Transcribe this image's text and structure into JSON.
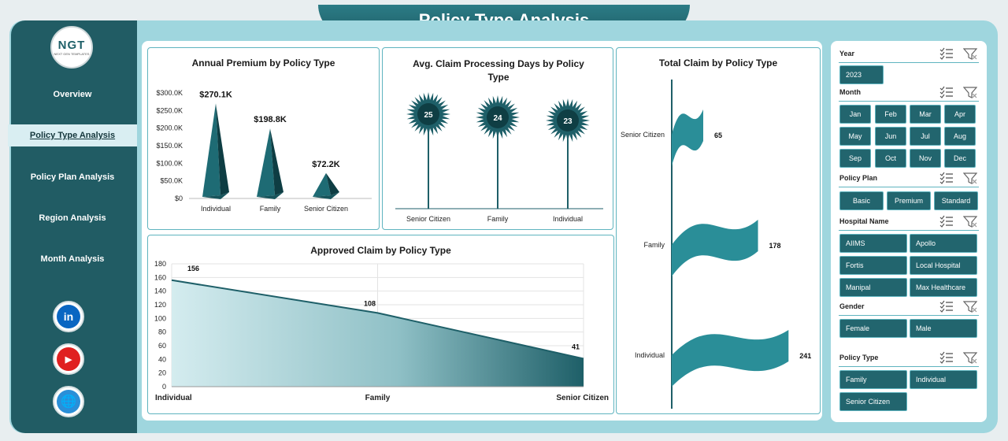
{
  "title": "Policy Type Analysis",
  "logo": {
    "text": "NGT",
    "subtext": "NEXT GEN TEMPLATES"
  },
  "nav": [
    {
      "label": "Overview",
      "active": false
    },
    {
      "label": "Policy Type Analysis",
      "active": true
    },
    {
      "label": "Policy Plan Analysis",
      "active": false
    },
    {
      "label": "Region Analysis",
      "active": false
    },
    {
      "label": "Month Analysis",
      "active": false
    }
  ],
  "social": [
    {
      "icon": "linkedin-icon",
      "glyph": "in",
      "color": "#0a66c2"
    },
    {
      "icon": "youtube-icon",
      "glyph": "▶",
      "color": "#e02020"
    },
    {
      "icon": "globe-icon",
      "glyph": "🌐",
      "color": "#2a8fd8"
    }
  ],
  "chart_data": [
    {
      "type": "bar",
      "title": "Annual Premium by Policy Type",
      "categories": [
        "Individual",
        "Family",
        "Senior Citizen"
      ],
      "values": [
        270.1,
        198.8,
        72.2
      ],
      "data_labels": [
        "$270.1K",
        "$198.8K",
        "$72.2K"
      ],
      "yticks": [
        "$0",
        "$50.0K",
        "$100.0K",
        "$150.0K",
        "$200.0K",
        "$250.0K",
        "$300.0K"
      ],
      "ylim": [
        0,
        300
      ],
      "unit": "K",
      "color": "#1e6b74"
    },
    {
      "type": "bar",
      "title": "Avg. Claim Processing Days by Policy Type",
      "categories": [
        "Senior Citizen",
        "Family",
        "Individual"
      ],
      "values": [
        25,
        24,
        23
      ],
      "data_labels": [
        "25",
        "24",
        "23"
      ],
      "color": "#1e5f68"
    },
    {
      "type": "bar",
      "title": "Total Claim by Policy Type",
      "categories": [
        "Senior Citizen",
        "Family",
        "Individual"
      ],
      "values": [
        65,
        178,
        241
      ],
      "data_labels": [
        "65",
        "178",
        "241"
      ],
      "orientation": "horizontal",
      "color": "#2a8e98"
    },
    {
      "type": "area",
      "title": "Approved Claim by Policy Type",
      "categories": [
        "Individual",
        "Family",
        "Senior Citizen"
      ],
      "values": [
        156,
        108,
        41
      ],
      "data_labels": [
        "156",
        "108",
        "41"
      ],
      "yticks": [
        "0",
        "20",
        "40",
        "60",
        "80",
        "100",
        "120",
        "140",
        "160",
        "180"
      ],
      "ylim": [
        0,
        180
      ],
      "grid": true,
      "color": "#1e5f68"
    }
  ],
  "slicers": [
    {
      "label": "Year",
      "items": [
        "2023"
      ]
    },
    {
      "label": "Month",
      "items": [
        "Jan",
        "Feb",
        "Mar",
        "Apr",
        "May",
        "Jun",
        "Jul",
        "Aug",
        "Sep",
        "Oct",
        "Nov",
        "Dec"
      ]
    },
    {
      "label": "Policy Plan",
      "items": [
        "Basic",
        "Premium",
        "Standard"
      ]
    },
    {
      "label": "Hospital Name",
      "items": [
        "AIIMS",
        "Apollo",
        "Fortis",
        "Local Hospital",
        "Manipal",
        "Max Healthcare"
      ]
    },
    {
      "label": "Gender",
      "items": [
        "Female",
        "Male"
      ]
    },
    {
      "label": "Policy Type",
      "items": [
        "Family",
        "Individual",
        "Senior Citizen"
      ]
    }
  ]
}
